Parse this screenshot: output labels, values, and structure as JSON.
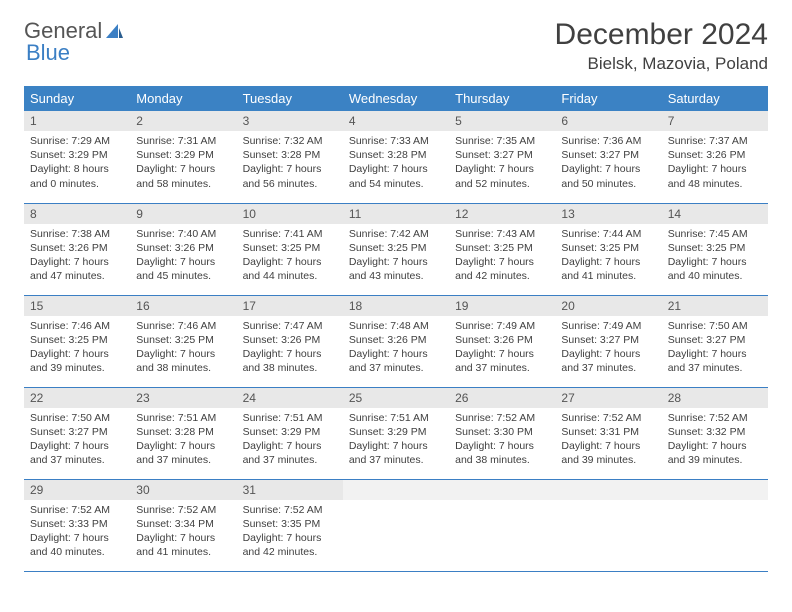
{
  "logo": {
    "text_gray": "General",
    "text_blue": "Blue"
  },
  "title": "December 2024",
  "location": "Bielsk, Mazovia, Poland",
  "colors": {
    "header_bg": "#3b82c4",
    "header_fg": "#ffffff",
    "daynum_bg": "#e8e8e8",
    "row_border": "#3b7fc4",
    "text": "#404040"
  },
  "day_headers": [
    "Sunday",
    "Monday",
    "Tuesday",
    "Wednesday",
    "Thursday",
    "Friday",
    "Saturday"
  ],
  "weeks": [
    [
      {
        "n": "1",
        "sunrise": "Sunrise: 7:29 AM",
        "sunset": "Sunset: 3:29 PM",
        "day": "Daylight: 8 hours and 0 minutes."
      },
      {
        "n": "2",
        "sunrise": "Sunrise: 7:31 AM",
        "sunset": "Sunset: 3:29 PM",
        "day": "Daylight: 7 hours and 58 minutes."
      },
      {
        "n": "3",
        "sunrise": "Sunrise: 7:32 AM",
        "sunset": "Sunset: 3:28 PM",
        "day": "Daylight: 7 hours and 56 minutes."
      },
      {
        "n": "4",
        "sunrise": "Sunrise: 7:33 AM",
        "sunset": "Sunset: 3:28 PM",
        "day": "Daylight: 7 hours and 54 minutes."
      },
      {
        "n": "5",
        "sunrise": "Sunrise: 7:35 AM",
        "sunset": "Sunset: 3:27 PM",
        "day": "Daylight: 7 hours and 52 minutes."
      },
      {
        "n": "6",
        "sunrise": "Sunrise: 7:36 AM",
        "sunset": "Sunset: 3:27 PM",
        "day": "Daylight: 7 hours and 50 minutes."
      },
      {
        "n": "7",
        "sunrise": "Sunrise: 7:37 AM",
        "sunset": "Sunset: 3:26 PM",
        "day": "Daylight: 7 hours and 48 minutes."
      }
    ],
    [
      {
        "n": "8",
        "sunrise": "Sunrise: 7:38 AM",
        "sunset": "Sunset: 3:26 PM",
        "day": "Daylight: 7 hours and 47 minutes."
      },
      {
        "n": "9",
        "sunrise": "Sunrise: 7:40 AM",
        "sunset": "Sunset: 3:26 PM",
        "day": "Daylight: 7 hours and 45 minutes."
      },
      {
        "n": "10",
        "sunrise": "Sunrise: 7:41 AM",
        "sunset": "Sunset: 3:25 PM",
        "day": "Daylight: 7 hours and 44 minutes."
      },
      {
        "n": "11",
        "sunrise": "Sunrise: 7:42 AM",
        "sunset": "Sunset: 3:25 PM",
        "day": "Daylight: 7 hours and 43 minutes."
      },
      {
        "n": "12",
        "sunrise": "Sunrise: 7:43 AM",
        "sunset": "Sunset: 3:25 PM",
        "day": "Daylight: 7 hours and 42 minutes."
      },
      {
        "n": "13",
        "sunrise": "Sunrise: 7:44 AM",
        "sunset": "Sunset: 3:25 PM",
        "day": "Daylight: 7 hours and 41 minutes."
      },
      {
        "n": "14",
        "sunrise": "Sunrise: 7:45 AM",
        "sunset": "Sunset: 3:25 PM",
        "day": "Daylight: 7 hours and 40 minutes."
      }
    ],
    [
      {
        "n": "15",
        "sunrise": "Sunrise: 7:46 AM",
        "sunset": "Sunset: 3:25 PM",
        "day": "Daylight: 7 hours and 39 minutes."
      },
      {
        "n": "16",
        "sunrise": "Sunrise: 7:46 AM",
        "sunset": "Sunset: 3:25 PM",
        "day": "Daylight: 7 hours and 38 minutes."
      },
      {
        "n": "17",
        "sunrise": "Sunrise: 7:47 AM",
        "sunset": "Sunset: 3:26 PM",
        "day": "Daylight: 7 hours and 38 minutes."
      },
      {
        "n": "18",
        "sunrise": "Sunrise: 7:48 AM",
        "sunset": "Sunset: 3:26 PM",
        "day": "Daylight: 7 hours and 37 minutes."
      },
      {
        "n": "19",
        "sunrise": "Sunrise: 7:49 AM",
        "sunset": "Sunset: 3:26 PM",
        "day": "Daylight: 7 hours and 37 minutes."
      },
      {
        "n": "20",
        "sunrise": "Sunrise: 7:49 AM",
        "sunset": "Sunset: 3:27 PM",
        "day": "Daylight: 7 hours and 37 minutes."
      },
      {
        "n": "21",
        "sunrise": "Sunrise: 7:50 AM",
        "sunset": "Sunset: 3:27 PM",
        "day": "Daylight: 7 hours and 37 minutes."
      }
    ],
    [
      {
        "n": "22",
        "sunrise": "Sunrise: 7:50 AM",
        "sunset": "Sunset: 3:27 PM",
        "day": "Daylight: 7 hours and 37 minutes."
      },
      {
        "n": "23",
        "sunrise": "Sunrise: 7:51 AM",
        "sunset": "Sunset: 3:28 PM",
        "day": "Daylight: 7 hours and 37 minutes."
      },
      {
        "n": "24",
        "sunrise": "Sunrise: 7:51 AM",
        "sunset": "Sunset: 3:29 PM",
        "day": "Daylight: 7 hours and 37 minutes."
      },
      {
        "n": "25",
        "sunrise": "Sunrise: 7:51 AM",
        "sunset": "Sunset: 3:29 PM",
        "day": "Daylight: 7 hours and 37 minutes."
      },
      {
        "n": "26",
        "sunrise": "Sunrise: 7:52 AM",
        "sunset": "Sunset: 3:30 PM",
        "day": "Daylight: 7 hours and 38 minutes."
      },
      {
        "n": "27",
        "sunrise": "Sunrise: 7:52 AM",
        "sunset": "Sunset: 3:31 PM",
        "day": "Daylight: 7 hours and 39 minutes."
      },
      {
        "n": "28",
        "sunrise": "Sunrise: 7:52 AM",
        "sunset": "Sunset: 3:32 PM",
        "day": "Daylight: 7 hours and 39 minutes."
      }
    ],
    [
      {
        "n": "29",
        "sunrise": "Sunrise: 7:52 AM",
        "sunset": "Sunset: 3:33 PM",
        "day": "Daylight: 7 hours and 40 minutes."
      },
      {
        "n": "30",
        "sunrise": "Sunrise: 7:52 AM",
        "sunset": "Sunset: 3:34 PM",
        "day": "Daylight: 7 hours and 41 minutes."
      },
      {
        "n": "31",
        "sunrise": "Sunrise: 7:52 AM",
        "sunset": "Sunset: 3:35 PM",
        "day": "Daylight: 7 hours and 42 minutes."
      },
      null,
      null,
      null,
      null
    ]
  ]
}
